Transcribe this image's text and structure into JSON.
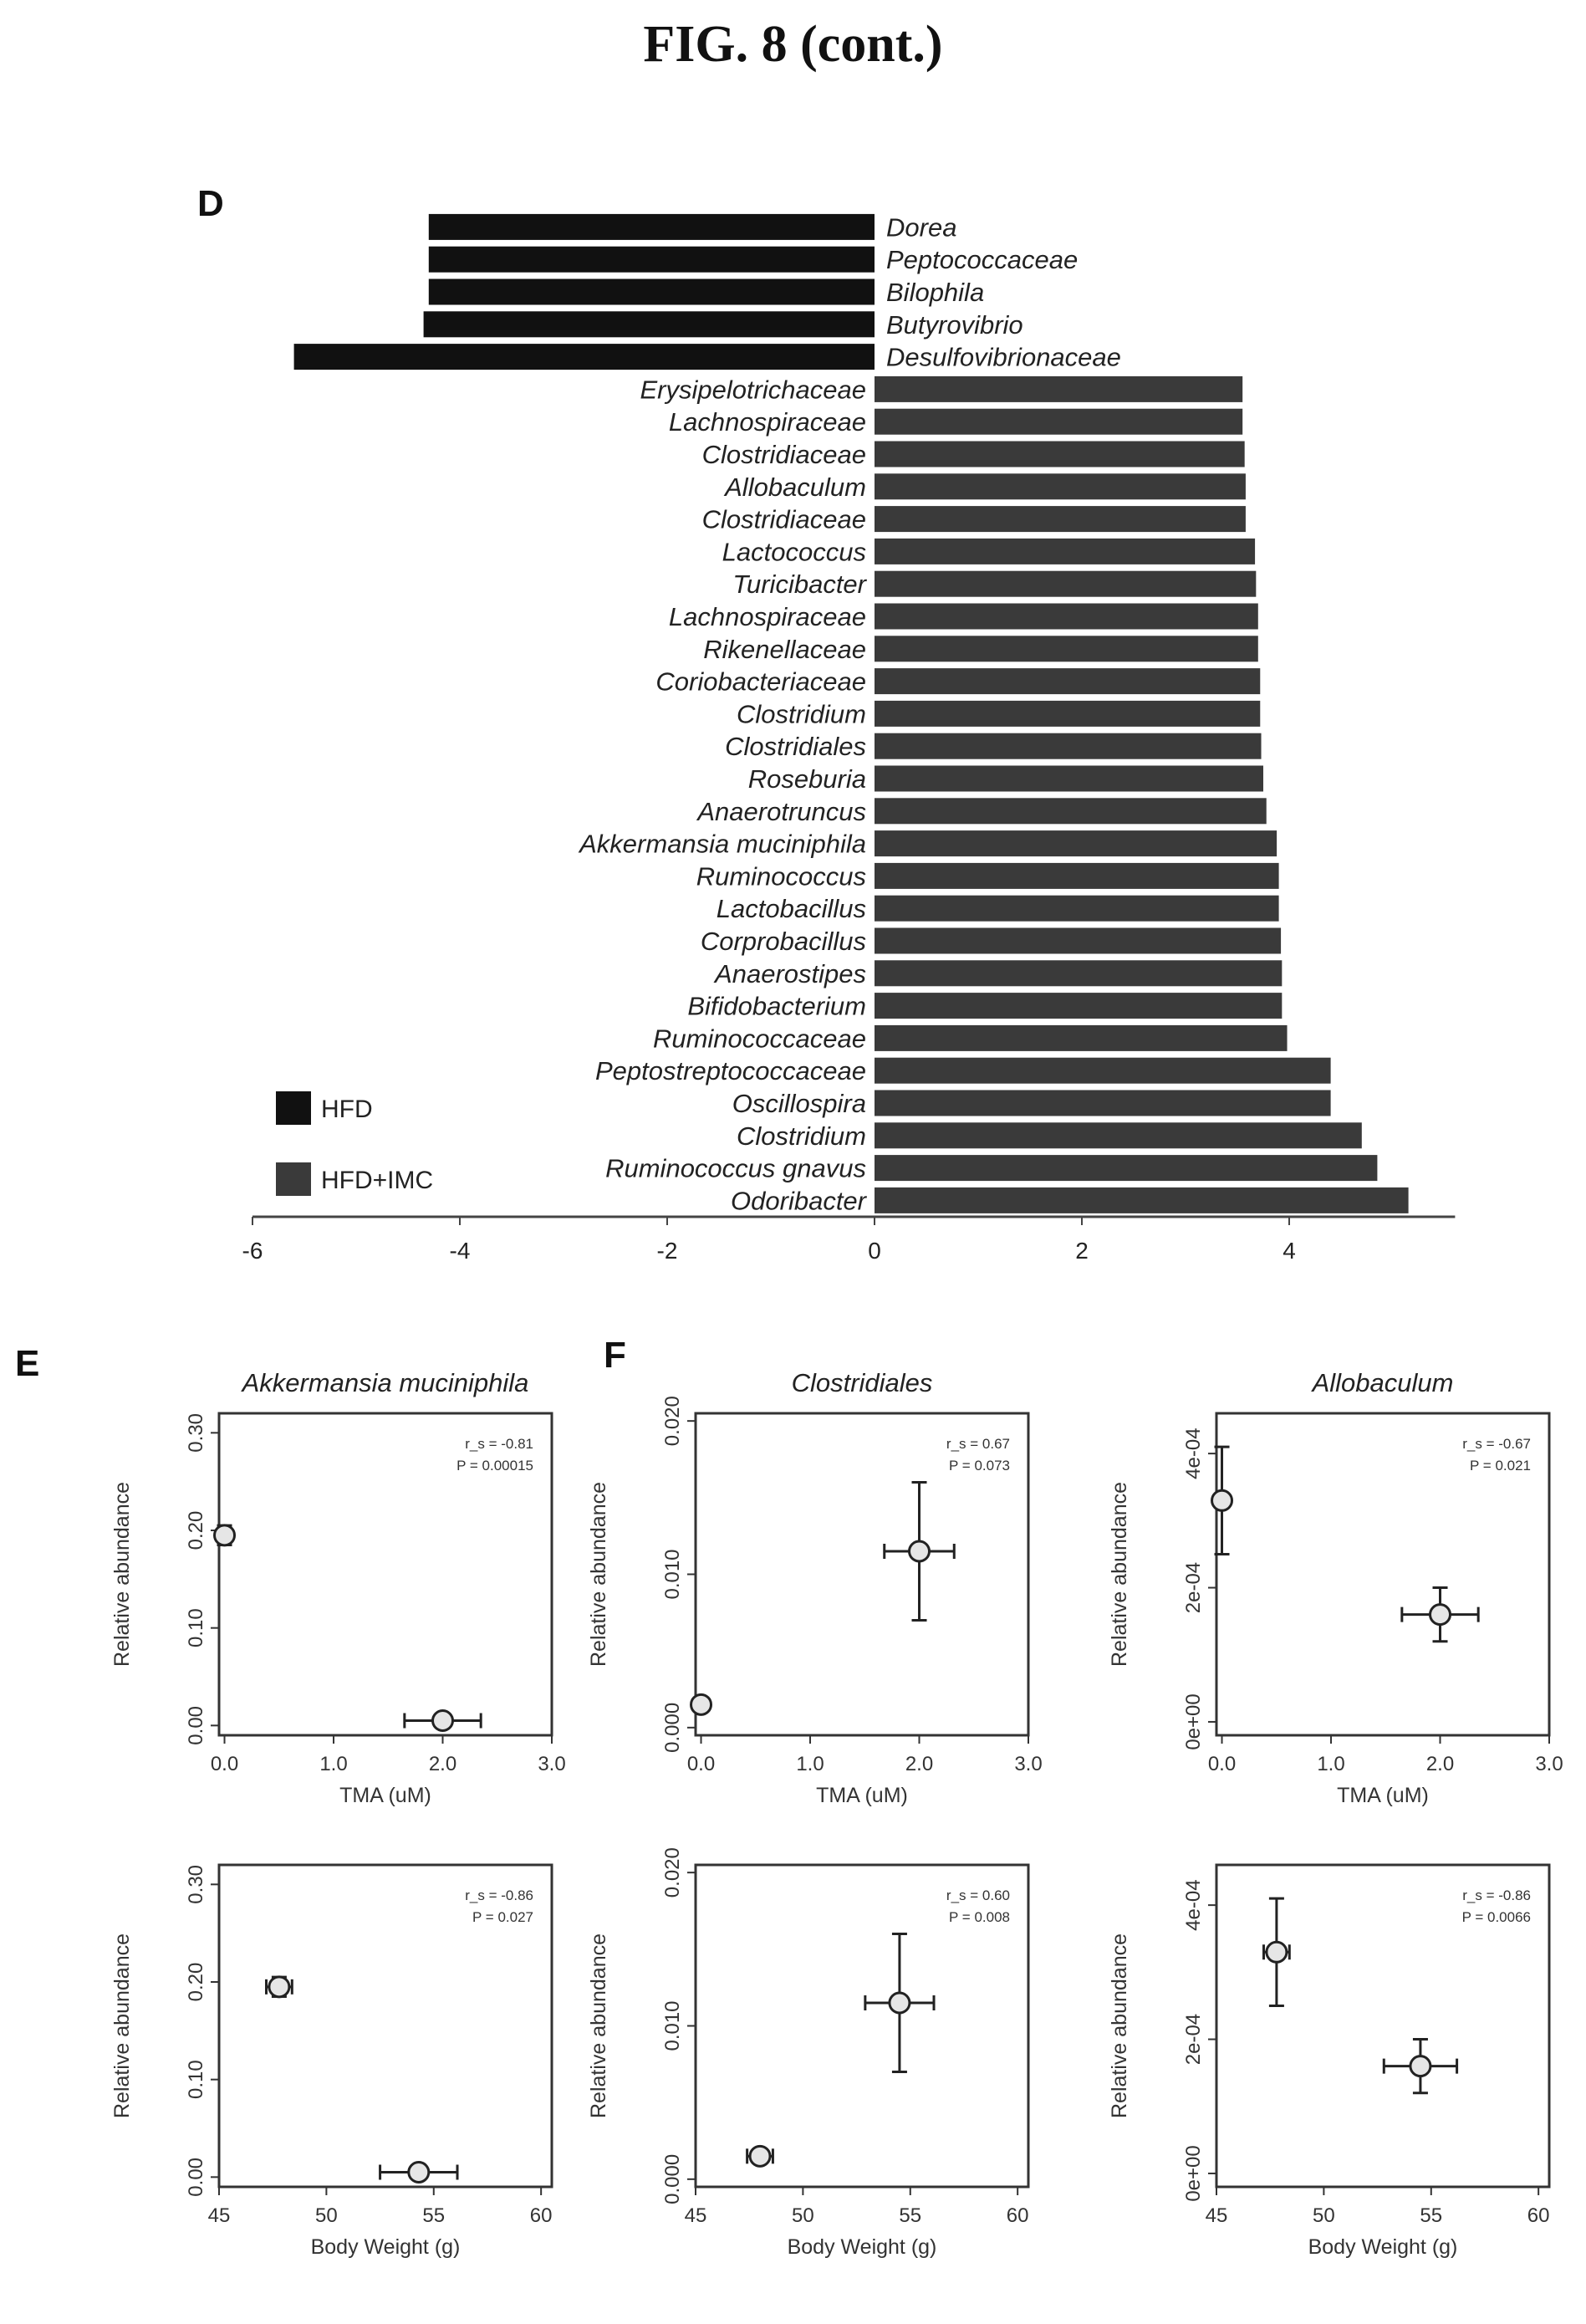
{
  "figure_title": "FIG. 8 (cont.)",
  "panels": {
    "d": "D",
    "e": "E",
    "f": "F"
  },
  "colors": {
    "hfd": "#111111",
    "hfd_imc": "#3a3a3a"
  },
  "chart_data": [
    {
      "panel": "D",
      "type": "bar",
      "orientation": "horizontal",
      "categories": [
        "Dorea",
        "Peptococcaceae",
        "Bilophila",
        "Butyrovibrio",
        "Desulfovibrionaceae",
        "Erysipelotrichaceae",
        "Lachnospiraceae",
        "Clostridiaceae",
        "Allobaculum",
        "Clostridiaceae",
        "Lactococcus",
        "Turicibacter",
        "Lachnospiraceae",
        "Rikenellaceae",
        "Coriobacteriaceae",
        "Clostridium",
        "Clostridiales",
        "Roseburia",
        "Anaerotruncus",
        "Akkermansia muciniphila",
        "Ruminococcus",
        "Lactobacillus",
        "Corprobacillus",
        "Anaerostipes",
        "Bifidobacterium",
        "Ruminococcaceae",
        "Peptostreptococcaceae",
        "Oscillospira",
        "Clostridium",
        "Ruminococcus gnavus",
        "Odoribacter"
      ],
      "values": [
        -4.3,
        -4.3,
        -4.3,
        -4.35,
        -5.6,
        3.55,
        3.55,
        3.57,
        3.58,
        3.58,
        3.67,
        3.68,
        3.7,
        3.7,
        3.72,
        3.72,
        3.73,
        3.75,
        3.78,
        3.88,
        3.9,
        3.9,
        3.92,
        3.93,
        3.93,
        3.98,
        4.4,
        4.4,
        4.7,
        4.85,
        5.15
      ],
      "groups": [
        "HFD",
        "HFD",
        "HFD",
        "HFD",
        "HFD",
        "HFD+IMC",
        "HFD+IMC",
        "HFD+IMC",
        "HFD+IMC",
        "HFD+IMC",
        "HFD+IMC",
        "HFD+IMC",
        "HFD+IMC",
        "HFD+IMC",
        "HFD+IMC",
        "HFD+IMC",
        "HFD+IMC",
        "HFD+IMC",
        "HFD+IMC",
        "HFD+IMC",
        "HFD+IMC",
        "HFD+IMC",
        "HFD+IMC",
        "HFD+IMC",
        "HFD+IMC",
        "HFD+IMC",
        "HFD+IMC",
        "HFD+IMC",
        "HFD+IMC",
        "HFD+IMC",
        "HFD+IMC"
      ],
      "legend": [
        "HFD",
        "HFD+IMC"
      ],
      "legend_position": "bottom-left",
      "xticks": [
        "-6",
        "-4",
        "-2",
        "0",
        "2",
        "4"
      ],
      "xlim": [
        -6,
        5.6
      ]
    },
    {
      "panel": "E",
      "type": "scatter",
      "title": "Akkermansia muciniphila",
      "xlabel": "TMA (uM)",
      "ylabel": "Relative abundance",
      "xticks": [
        "0.0",
        "1.0",
        "2.0",
        "3.0"
      ],
      "yticks": [
        "0.00",
        "0.10",
        "0.20",
        "0.30"
      ],
      "xlim": [
        -0.05,
        3.0
      ],
      "ylim": [
        -0.01,
        0.32
      ],
      "stats": [
        "r_s = -0.81",
        "P = 0.00015"
      ],
      "points": [
        {
          "x": 0.0,
          "y": 0.195,
          "xerr": 0.02,
          "yerr": 0.01
        },
        {
          "x": 2.0,
          "y": 0.005,
          "xerr": 0.35,
          "yerr": 0.006
        }
      ]
    },
    {
      "panel": "F",
      "type": "scatter",
      "title": "Clostridiales",
      "xlabel": "TMA (uM)",
      "ylabel": "Relative abundance",
      "xticks": [
        "0.0",
        "1.0",
        "2.0",
        "3.0"
      ],
      "yticks": [
        "0.000",
        "0.010",
        "0.020"
      ],
      "xlim": [
        -0.05,
        3.0
      ],
      "ylim": [
        -0.0005,
        0.0205
      ],
      "stats": [
        "r_s = 0.67",
        "P = 0.073"
      ],
      "points": [
        {
          "x": 0.0,
          "y": 0.0015,
          "xerr": 0.03,
          "yerr": 0.0003
        },
        {
          "x": 2.0,
          "y": 0.0115,
          "xerr": 0.32,
          "yerr": 0.0045
        }
      ]
    },
    {
      "panel": "F",
      "type": "scatter",
      "title": "Allobaculum",
      "xlabel": "TMA (uM)",
      "ylabel": "Relative abundance",
      "xticks": [
        "0.0",
        "1.0",
        "2.0",
        "3.0"
      ],
      "yticks": [
        "0e+00",
        "2e-04",
        "4e-04"
      ],
      "xlim": [
        -0.05,
        3.0
      ],
      "ylim": [
        -2e-05,
        0.00046
      ],
      "stats": [
        "r_s = -0.67",
        "P = 0.021"
      ],
      "points": [
        {
          "x": 0.0,
          "y": 0.00033,
          "xerr": 0.05,
          "yerr": 8e-05
        },
        {
          "x": 2.0,
          "y": 0.00016,
          "xerr": 0.35,
          "yerr": 4e-05
        }
      ]
    },
    {
      "panel": "E",
      "type": "scatter",
      "xlabel": "Body Weight (g)",
      "ylabel": "Relative abundance",
      "xticks": [
        "45",
        "50",
        "55",
        "60"
      ],
      "yticks": [
        "0.00",
        "0.10",
        "0.20",
        "0.30"
      ],
      "xlim": [
        45,
        60.5
      ],
      "ylim": [
        -0.01,
        0.32
      ],
      "stats": [
        "r_s = -0.86",
        "P = 0.027"
      ],
      "points": [
        {
          "x": 47.8,
          "y": 0.195,
          "xerr": 0.6,
          "yerr": 0.01
        },
        {
          "x": 54.3,
          "y": 0.005,
          "xerr": 1.8,
          "yerr": 0.006
        }
      ]
    },
    {
      "panel": "F",
      "type": "scatter",
      "xlabel": "Body Weight (g)",
      "ylabel": "Relative abundance",
      "xticks": [
        "45",
        "50",
        "55",
        "60"
      ],
      "yticks": [
        "0.000",
        "0.010",
        "0.020"
      ],
      "xlim": [
        45,
        60.5
      ],
      "ylim": [
        -0.0005,
        0.0205
      ],
      "stats": [
        "r_s = 0.60",
        "P = 0.008"
      ],
      "points": [
        {
          "x": 48.0,
          "y": 0.0015,
          "xerr": 0.6,
          "yerr": 0.0003
        },
        {
          "x": 54.5,
          "y": 0.0115,
          "xerr": 1.6,
          "yerr": 0.0045
        }
      ]
    },
    {
      "panel": "F",
      "type": "scatter",
      "xlabel": "Body Weight (g)",
      "ylabel": "Relative abundance",
      "xticks": [
        "45",
        "50",
        "55",
        "60"
      ],
      "yticks": [
        "0e+00",
        "2e-04",
        "4e-04"
      ],
      "xlim": [
        45,
        60.5
      ],
      "ylim": [
        -2e-05,
        0.00046
      ],
      "stats": [
        "r_s = -0.86",
        "P = 0.0066"
      ],
      "points": [
        {
          "x": 47.8,
          "y": 0.00033,
          "xerr": 0.6,
          "yerr": 8e-05
        },
        {
          "x": 54.5,
          "y": 0.00016,
          "xerr": 1.7,
          "yerr": 4e-05
        }
      ]
    }
  ]
}
